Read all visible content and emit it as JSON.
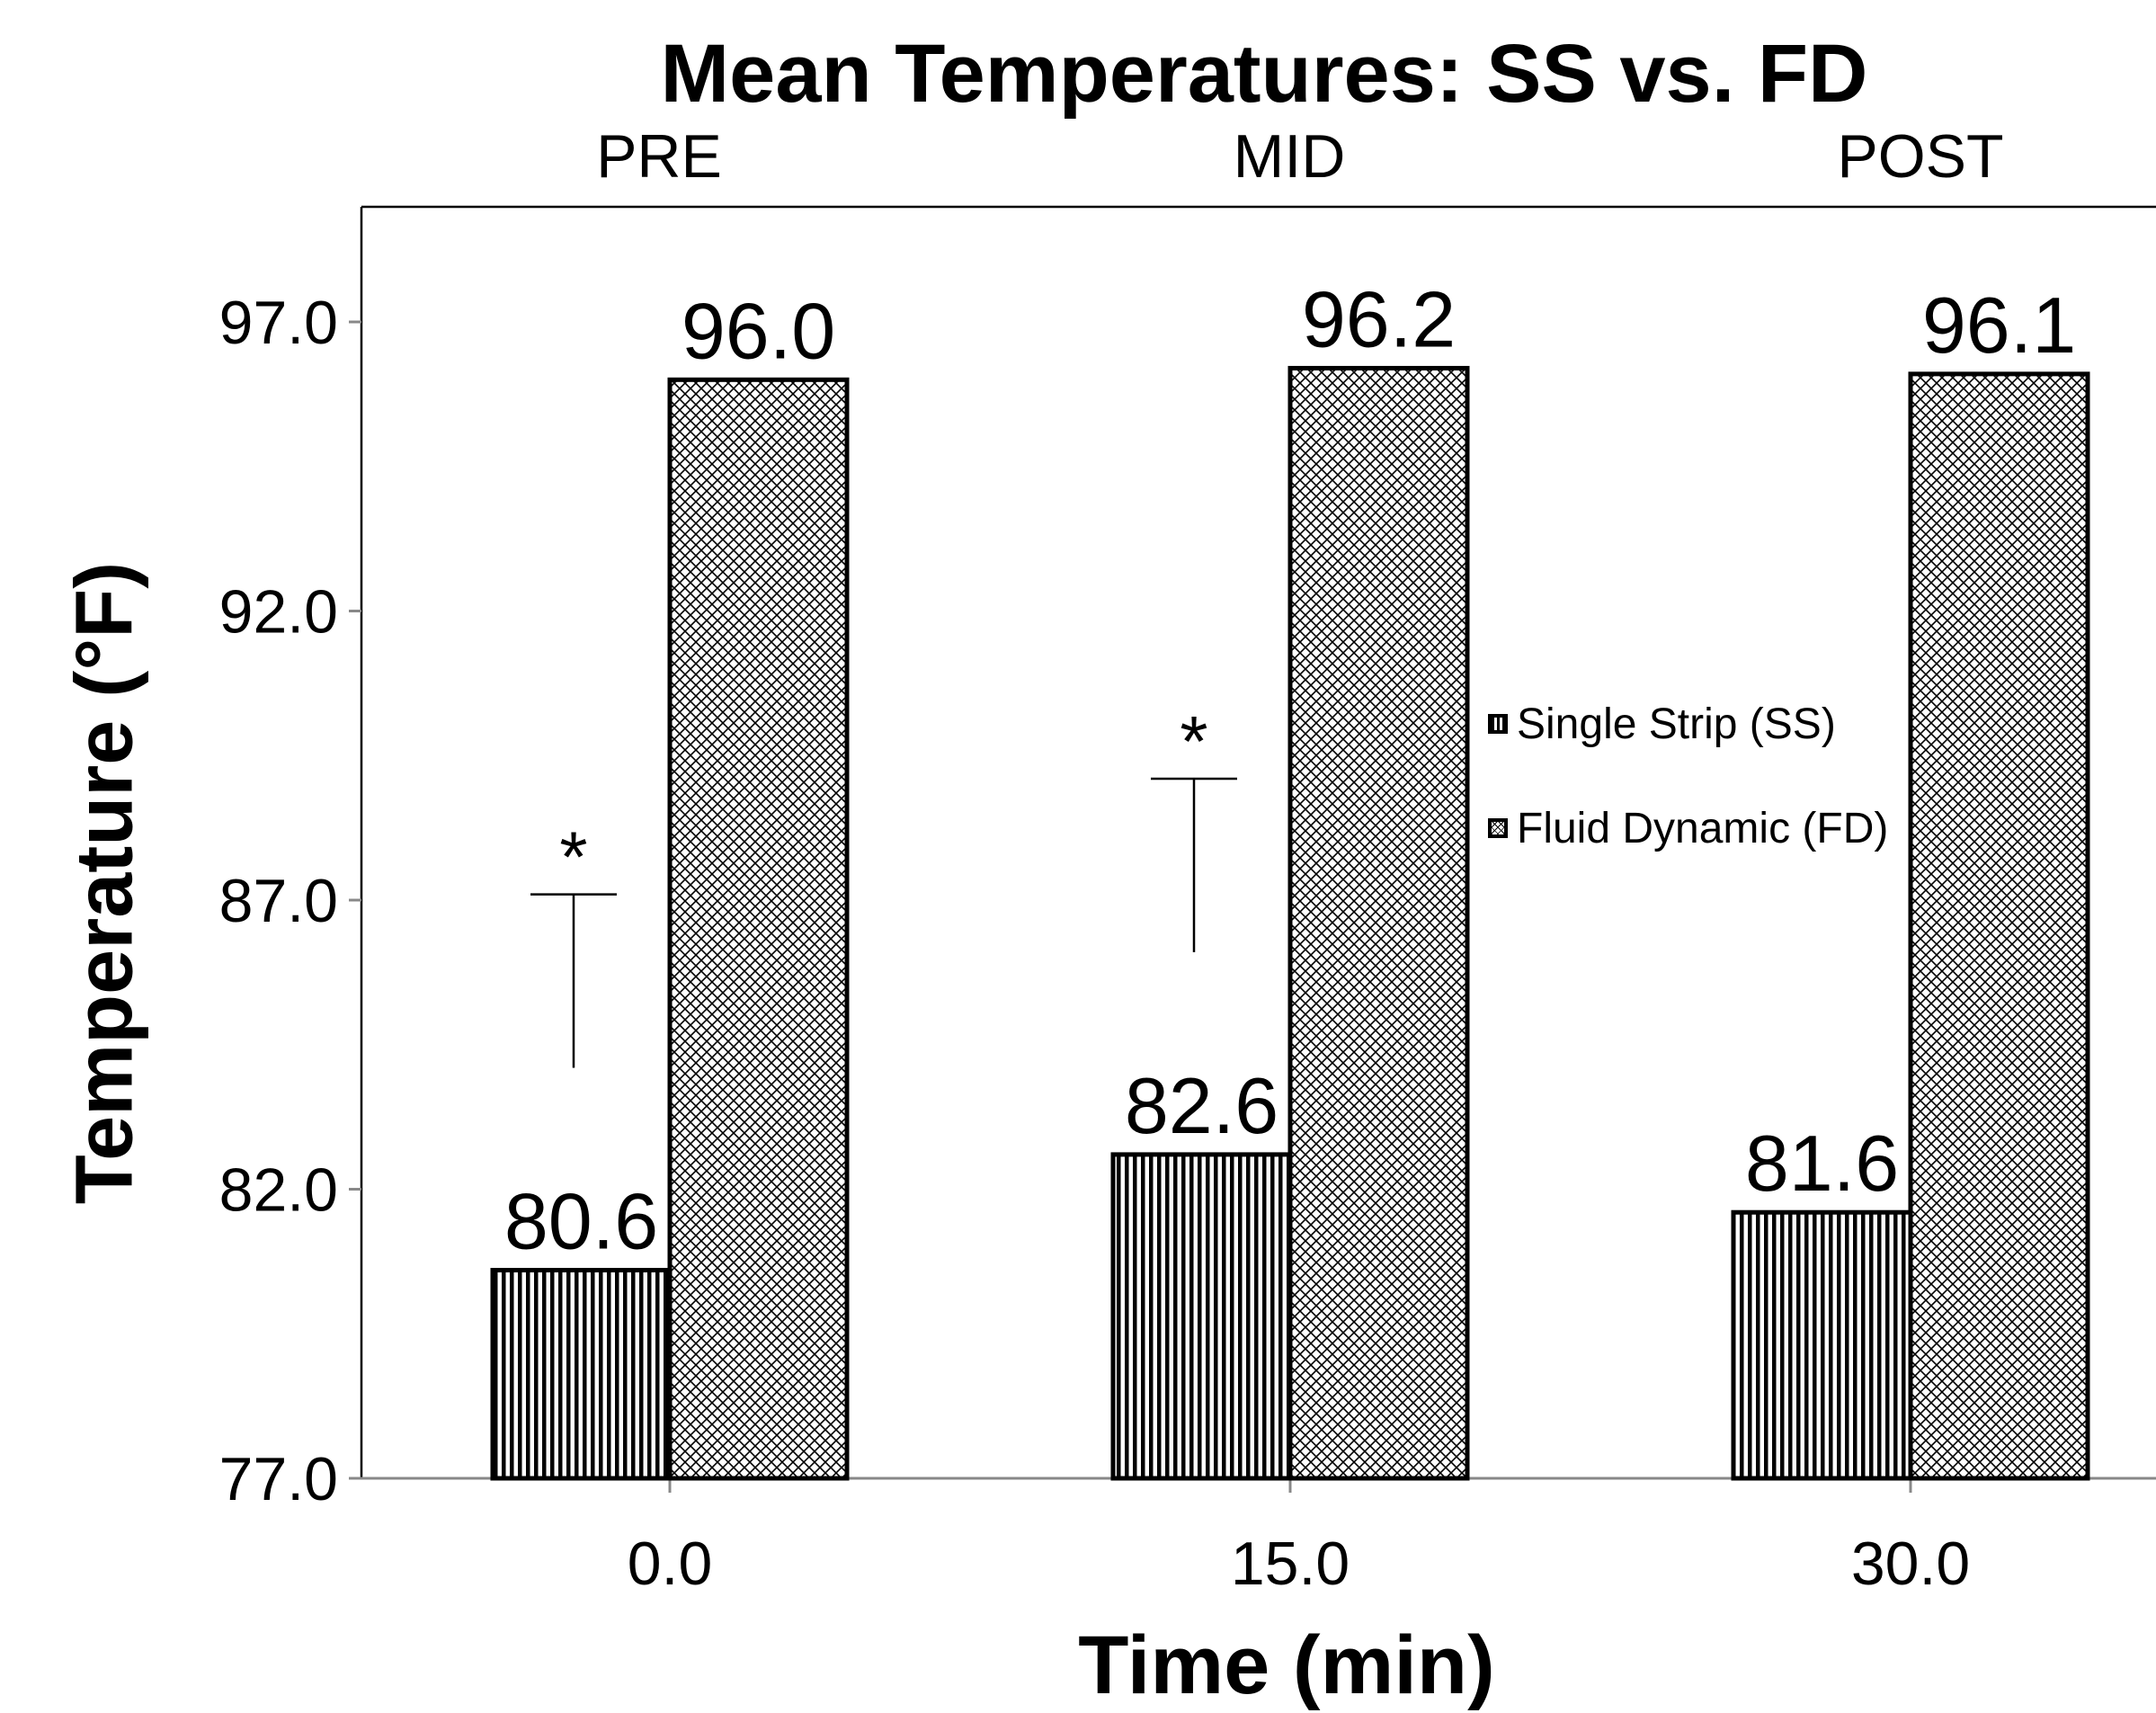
{
  "chart_data": {
    "type": "bar",
    "title": "Mean Temperatures: SS vs. FD",
    "phases": [
      "PRE",
      "MID",
      "POST"
    ],
    "xlabel": "Time (min)",
    "ylabel": "Temperature (°F)",
    "categories": [
      "0.0",
      "15.0",
      "30.0"
    ],
    "ylim": [
      77.0,
      97.0
    ],
    "yticks": [
      "77.0",
      "82.0",
      "87.0",
      "92.0",
      "97.0"
    ],
    "series": [
      {
        "name": "Single Strip (SS)",
        "pattern": "vertical-stripes",
        "values": [
          80.6,
          82.6,
          81.6
        ],
        "labels": [
          "80.6",
          "82.6",
          "81.6"
        ]
      },
      {
        "name": "Fluid Dynamic (FD)",
        "pattern": "crosshatch",
        "values": [
          96.0,
          96.2,
          96.1
        ],
        "labels": [
          "96.0",
          "96.2",
          "96.1"
        ]
      }
    ],
    "significance": [
      {
        "category": "0.0",
        "symbol": "*"
      },
      {
        "category": "15.0",
        "symbol": "*"
      }
    ],
    "legend_position": "right-center",
    "grid": false
  }
}
